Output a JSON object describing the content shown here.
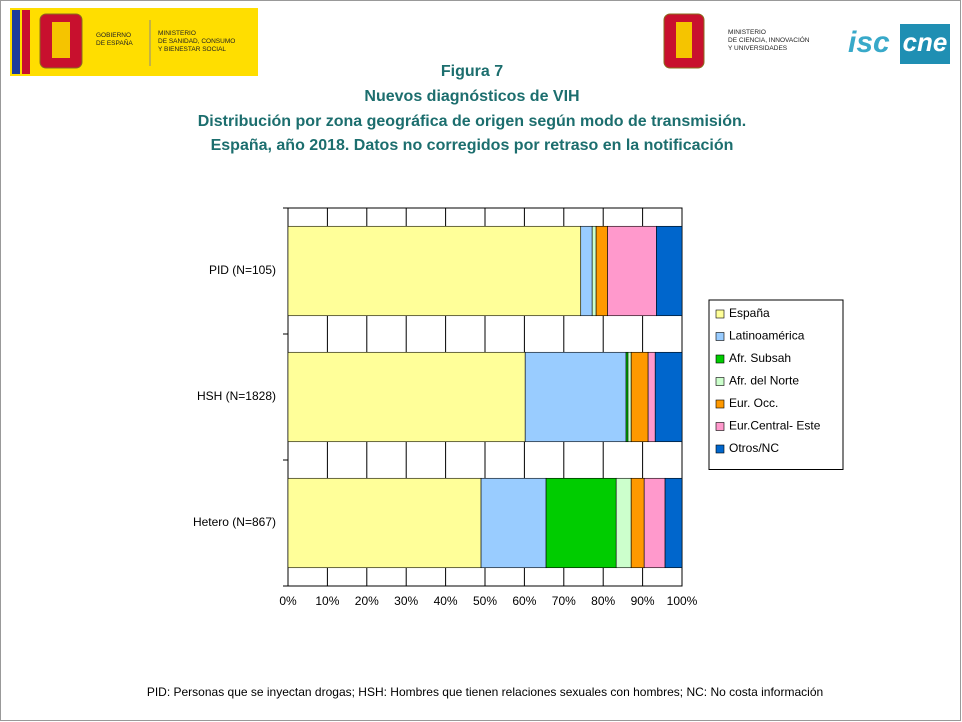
{
  "header": {
    "left_logo": {
      "gobierno": [
        "GOBIERNO",
        "DE ESPAÑA"
      ],
      "ministerio": [
        "MINISTERIO",
        "DE SANIDAD, CONSUMO",
        "Y BIENESTAR SOCIAL"
      ]
    },
    "right_logo": {
      "ministerio": [
        "MINISTERIO",
        "DE CIENCIA, INNOVACIÓN",
        "Y UNIVERSIDADES"
      ],
      "isciii": "isc",
      "cne": "cne"
    }
  },
  "chart_data": {
    "type": "stacked_barh",
    "title": [
      "Figura 7",
      "Nuevos diagnósticos de VIH",
      "Distribución por zona geográfica de origen según modo de transmisión.",
      "España, año 2018. Datos no corregidos por retraso en la notificación"
    ],
    "categories": [
      "PID (N=105)",
      "HSH (N=1828)",
      "Hetero (N=867)"
    ],
    "series": [
      {
        "name": "España",
        "color": "#ffff99",
        "values": [
          74.3,
          60.2,
          49.0
        ]
      },
      {
        "name": "Latinoamérica",
        "color": "#99ccff",
        "values": [
          2.9,
          25.6,
          16.5
        ]
      },
      {
        "name": "Afr. Subsah",
        "color": "#00cc00",
        "values": [
          0,
          0.5,
          17.8
        ]
      },
      {
        "name": "Afr. del Norte",
        "color": "#ccffcc",
        "values": [
          1.0,
          0.8,
          3.8
        ]
      },
      {
        "name": "Eur. Occ.",
        "color": "#ff9900",
        "values": [
          2.9,
          4.3,
          3.3
        ]
      },
      {
        "name": "Eur.Central- Este",
        "color": "#ff99cc",
        "values": [
          12.4,
          1.8,
          5.3
        ]
      },
      {
        "name": "Otros/NC",
        "color": "#0066cc",
        "values": [
          6.5,
          6.8,
          4.3
        ]
      }
    ],
    "xlim": [
      0,
      100
    ],
    "xticks": [
      {
        "value": 0,
        "label": "0%"
      },
      {
        "value": 10,
        "label": "10%"
      },
      {
        "value": 20,
        "label": "20%"
      },
      {
        "value": 30,
        "label": "30%"
      },
      {
        "value": 40,
        "label": "40%"
      },
      {
        "value": 50,
        "label": "50%"
      },
      {
        "value": 60,
        "label": "60%"
      },
      {
        "value": 70,
        "label": "70%"
      },
      {
        "value": 80,
        "label": "80%"
      },
      {
        "value": 90,
        "label": "90%"
      },
      {
        "value": 100,
        "label": "100%"
      }
    ],
    "grid": true,
    "legend": "right"
  },
  "footnote": "PID: Personas que se inyectan drogas; HSH: Hombres que tienen relaciones sexuales con hombres; NC: No costa información"
}
